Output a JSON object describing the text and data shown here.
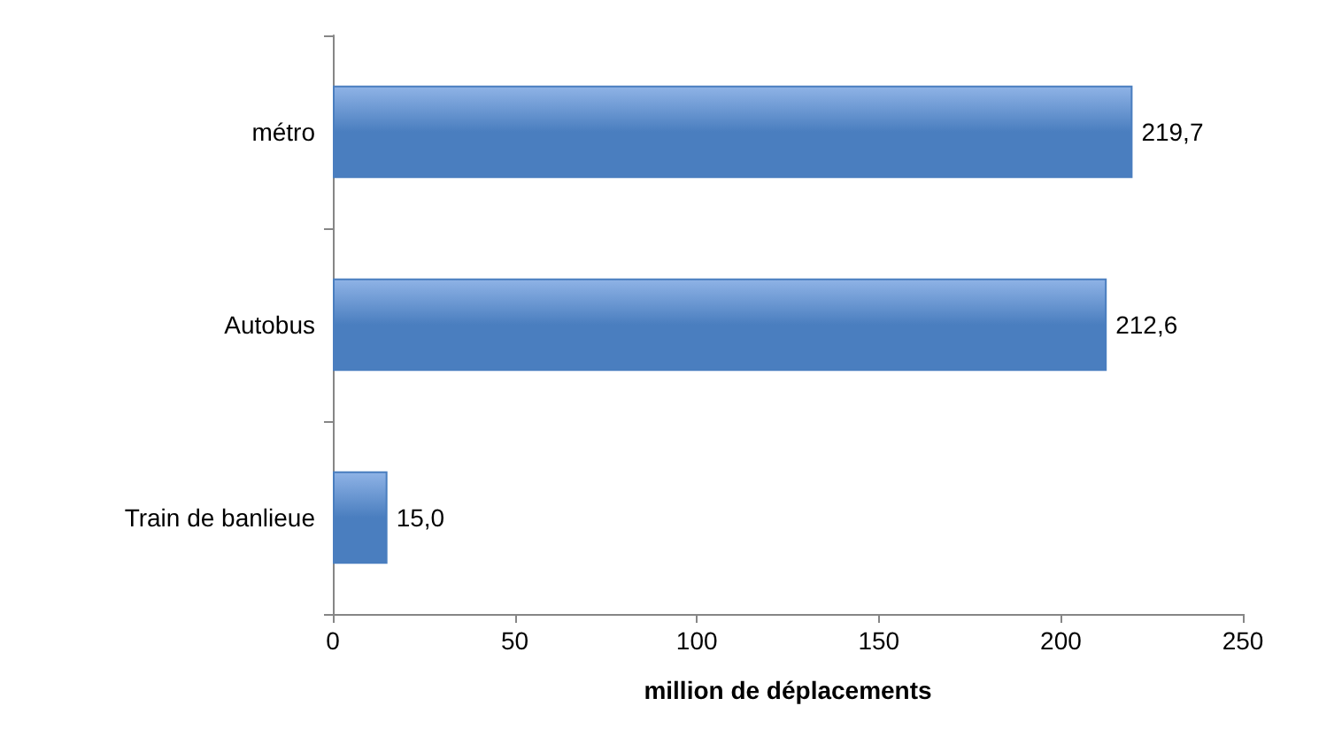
{
  "chart_data": {
    "type": "bar",
    "orientation": "horizontal",
    "categories": [
      "métro",
      "Autobus",
      "Train de banlieue"
    ],
    "values": [
      219.7,
      212.6,
      15.0
    ],
    "value_labels": [
      "219,7",
      "212,6",
      "15,0"
    ],
    "color": "#4a7ebf",
    "xlabel": "million de déplacements",
    "xlim": [
      0,
      250
    ],
    "xticks": [
      0,
      50,
      100,
      150,
      200,
      250
    ],
    "grid": false
  }
}
